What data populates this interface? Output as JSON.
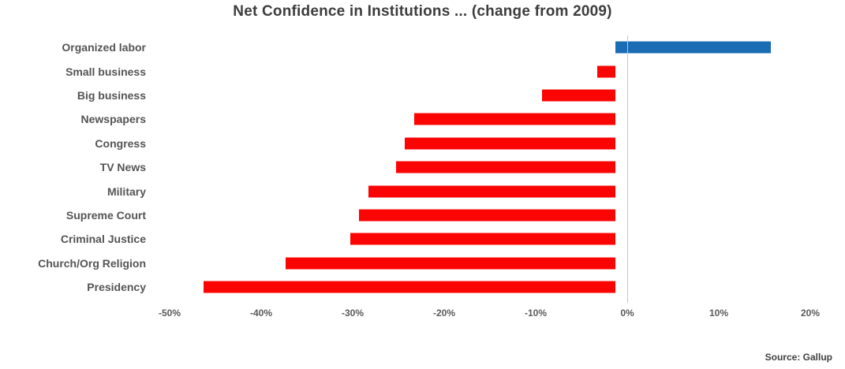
{
  "title": "Net Confidence in Institutions ... (change from 2009)",
  "source": "Source: Gallup",
  "colors": {
    "positive_bar": "#1a6cb5",
    "negative_bar": "#fb0404",
    "title_text": "#3d3d3d",
    "label_text": "#545454",
    "zero_line": "#c6c6c6"
  },
  "chart_data": {
    "type": "bar",
    "orientation": "horizontal",
    "title": "Net Confidence in Institutions ... (change from 2009)",
    "categories": [
      "Organized labor",
      "Small business",
      "Big business",
      "Newspapers",
      "Congress",
      "TV News",
      "Military",
      "Supreme Court",
      "Criminal Justice",
      "Church/Org Religion",
      "Presidency"
    ],
    "values": [
      17,
      -2,
      -8,
      -22,
      -23,
      -24,
      -27,
      -28,
      -29,
      -36,
      -45
    ],
    "unit": "%",
    "xlim": [
      -50,
      20
    ],
    "xtick_values": [
      -50,
      -40,
      -30,
      -20,
      -10,
      0,
      10,
      20
    ],
    "xtick_labels": [
      "-50%",
      "-40%",
      "-30%",
      "-20%",
      "-10%",
      "0%",
      "10%",
      "20%"
    ],
    "grid": "off",
    "legend": "none",
    "annotation": "Source: Gallup"
  }
}
